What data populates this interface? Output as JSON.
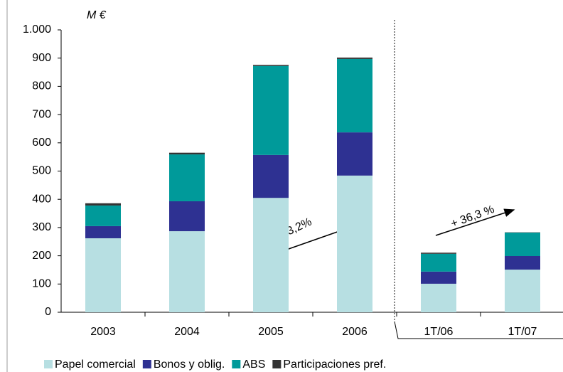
{
  "chart_data": {
    "type": "stacked_bar",
    "unit_label": "M €",
    "categories": [
      "2003",
      "2004",
      "2005",
      "2006",
      "1T/06",
      "1T/07"
    ],
    "series": [
      {
        "name": "Papel comercial",
        "color": "#b7dfe2",
        "values": [
          262,
          287,
          405,
          484,
          101,
          151
        ]
      },
      {
        "name": "Bonos y oblig.",
        "color": "#2e3192",
        "values": [
          43,
          106,
          152,
          153,
          43,
          48
        ]
      },
      {
        "name": "ABS",
        "color": "#009a9a",
        "values": [
          73,
          166,
          315,
          260,
          63,
          83
        ]
      },
      {
        "name": "Participaciones pref.",
        "color": "#333333",
        "values": [
          8,
          6,
          4,
          5,
          4,
          1
        ]
      }
    ],
    "ylim": [
      0,
      1000
    ],
    "yticks": [
      0,
      100,
      200,
      300,
      400,
      500,
      600,
      700,
      800,
      900,
      {
        "value": 1000,
        "label": "1.000"
      }
    ],
    "annotations": [
      "+ 3,2%",
      "+ 36,3 %"
    ],
    "legend": "bottom"
  }
}
